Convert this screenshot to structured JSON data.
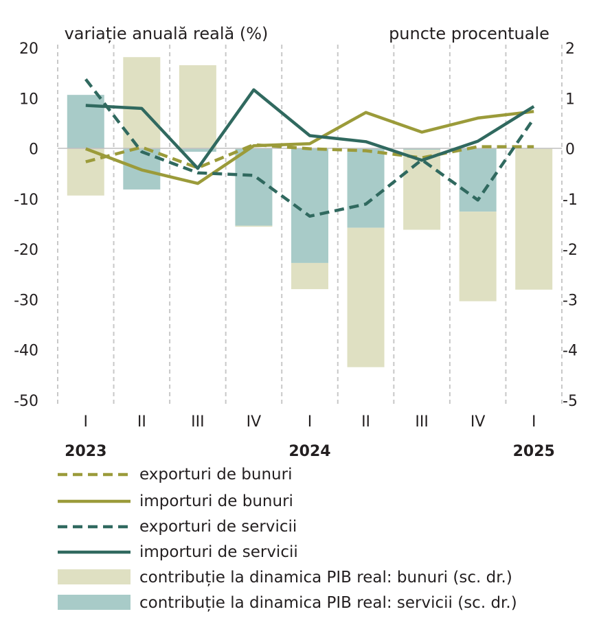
{
  "chart_data": {
    "type": "bar+line",
    "left_axis_label": "variație anuală reală (%)",
    "right_axis_label": "puncte procentuale",
    "ylim_left": [
      -50,
      20
    ],
    "ylim_right": [
      -5,
      2
    ],
    "left_ticks": [
      "20",
      "10",
      "0",
      "-10",
      "-20",
      "-30",
      "-40",
      "-50"
    ],
    "right_ticks": [
      "2",
      "1",
      "0",
      "-1",
      "-2",
      "-3",
      "-4",
      "-5"
    ],
    "categories": [
      "I",
      "II",
      "III",
      "IV",
      "I",
      "II",
      "III",
      "IV",
      "I"
    ],
    "years": [
      {
        "label": "2023",
        "index": 0
      },
      {
        "label": "2024",
        "index": 4
      },
      {
        "label": "2025",
        "index": 8
      }
    ],
    "grid": "vertical dashed",
    "lines": [
      {
        "name": "exporturi de bunuri",
        "style": "dashed",
        "color": "#9b9b3a",
        "values": [
          -2.6,
          0.3,
          -3.8,
          0.8,
          0.0,
          -0.4,
          -1.8,
          0.4,
          0.4
        ]
      },
      {
        "name": "importuri de bunuri",
        "style": "solid",
        "color": "#9b9b3a",
        "values": [
          0.0,
          -4.2,
          -6.9,
          0.6,
          1.0,
          7.2,
          3.3,
          6.1,
          7.4
        ]
      },
      {
        "name": "exporturi de servicii",
        "style": "dashed",
        "color": "#30695f",
        "values": [
          13.8,
          -0.6,
          -4.8,
          -5.3,
          -13.4,
          -11.0,
          -2.2,
          -10.2,
          6.0
        ]
      },
      {
        "name": "importuri de servicii",
        "style": "solid",
        "color": "#30695f",
        "values": [
          8.6,
          8.0,
          -3.9,
          11.7,
          2.6,
          1.4,
          -2.3,
          1.5,
          8.4
        ]
      }
    ],
    "bars": [
      {
        "name": "contribuție la dinamica PIB real: bunuri (sc. dr.)",
        "color": "#dfe0c2",
        "axis": "right",
        "values": [
          -0.93,
          1.82,
          1.66,
          -0.02,
          -0.52,
          -2.77,
          -1.59,
          -1.78,
          -2.8
        ]
      },
      {
        "name": "contribuție la dinamica PIB real: servicii (sc. dr.)",
        "color": "#a8cbc8",
        "axis": "right",
        "values": [
          1.07,
          -0.81,
          -0.06,
          -1.53,
          -2.27,
          -1.57,
          -0.02,
          -1.25,
          0.0
        ]
      }
    ]
  }
}
